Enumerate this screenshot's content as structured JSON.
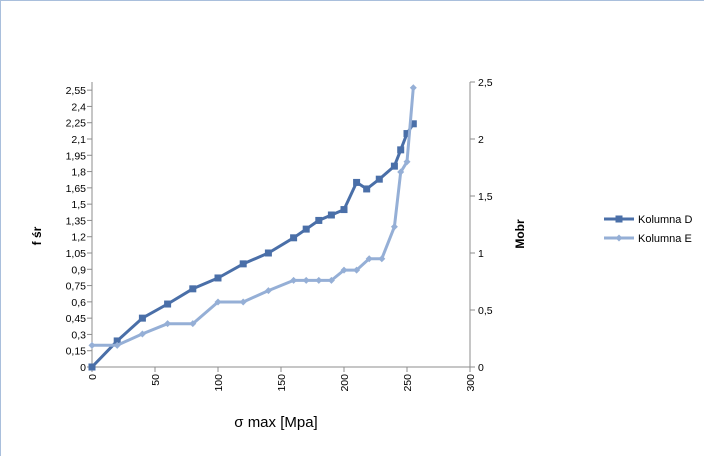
{
  "chart_data": {
    "type": "line",
    "title": "",
    "xlabel": "σ max [Mpa]",
    "ylabel_left": "f śr",
    "ylabel_right": "Mobr",
    "xlim": [
      0,
      300
    ],
    "ylim_left": [
      0,
      2.625
    ],
    "ylim_right": [
      0,
      2.5
    ],
    "x_ticks": [
      "0",
      "50",
      "100",
      "150",
      "200",
      "250",
      "300"
    ],
    "y_left_ticks": [
      "0",
      "0,15",
      "0,3",
      "0,45",
      "0,6",
      "0,75",
      "0,9",
      "1,05",
      "1,2",
      "1,35",
      "1,5",
      "1,65",
      "1,8",
      "1,95",
      "2,1",
      "2,25",
      "2,4",
      "2,55"
    ],
    "y_right_ticks": [
      "0",
      "0,5",
      "1",
      "1,5",
      "2",
      "2,5"
    ],
    "grid": false,
    "legend": "right",
    "series": [
      {
        "name": "Kolumna D",
        "axis": "left",
        "color": "#4a6fa8",
        "marker": "square",
        "x": [
          0,
          20,
          40,
          60,
          80,
          100,
          120,
          140,
          160,
          170,
          180,
          190,
          200,
          210,
          218,
          228,
          240,
          245,
          250,
          255
        ],
        "y": [
          0.0,
          0.24,
          0.45,
          0.58,
          0.72,
          0.82,
          0.95,
          1.05,
          1.19,
          1.27,
          1.35,
          1.4,
          1.45,
          1.7,
          1.64,
          1.73,
          1.85,
          2.0,
          2.15,
          2.24
        ]
      },
      {
        "name": "Kolumna E",
        "axis": "right",
        "color": "#95afd6",
        "marker": "diamond",
        "x": [
          0,
          20,
          40,
          60,
          80,
          100,
          120,
          140,
          160,
          170,
          180,
          190,
          200,
          210,
          220,
          230,
          240,
          245,
          250,
          255
        ],
        "y": [
          0.19,
          0.19,
          0.29,
          0.38,
          0.38,
          0.57,
          0.57,
          0.67,
          0.76,
          0.76,
          0.76,
          0.76,
          0.85,
          0.85,
          0.95,
          0.95,
          1.23,
          1.71,
          1.8,
          2.45
        ]
      }
    ]
  }
}
